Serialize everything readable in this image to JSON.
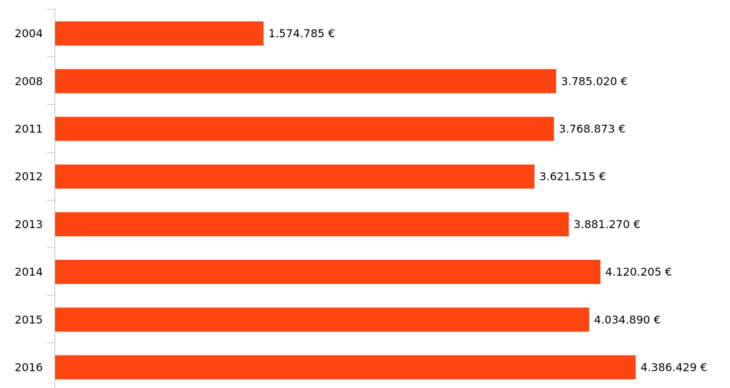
{
  "chart_data": {
    "type": "bar",
    "orientation": "horizontal",
    "categories": [
      "2004",
      "2008",
      "2011",
      "2012",
      "2013",
      "2014",
      "2015",
      "2016"
    ],
    "values": [
      1574785,
      3785020,
      3768873,
      3621515,
      3881270,
      4120205,
      4034890,
      4386429
    ],
    "value_labels": [
      "1.574.785 €",
      "3.785.020 €",
      "3.768.873 €",
      "3.621.515 €",
      "3.881.270 €",
      "4.120.205 €",
      "4.034.890 €",
      "4.386.429 €"
    ],
    "color": "#ff4511",
    "xlim": [
      0,
      5000000
    ]
  }
}
